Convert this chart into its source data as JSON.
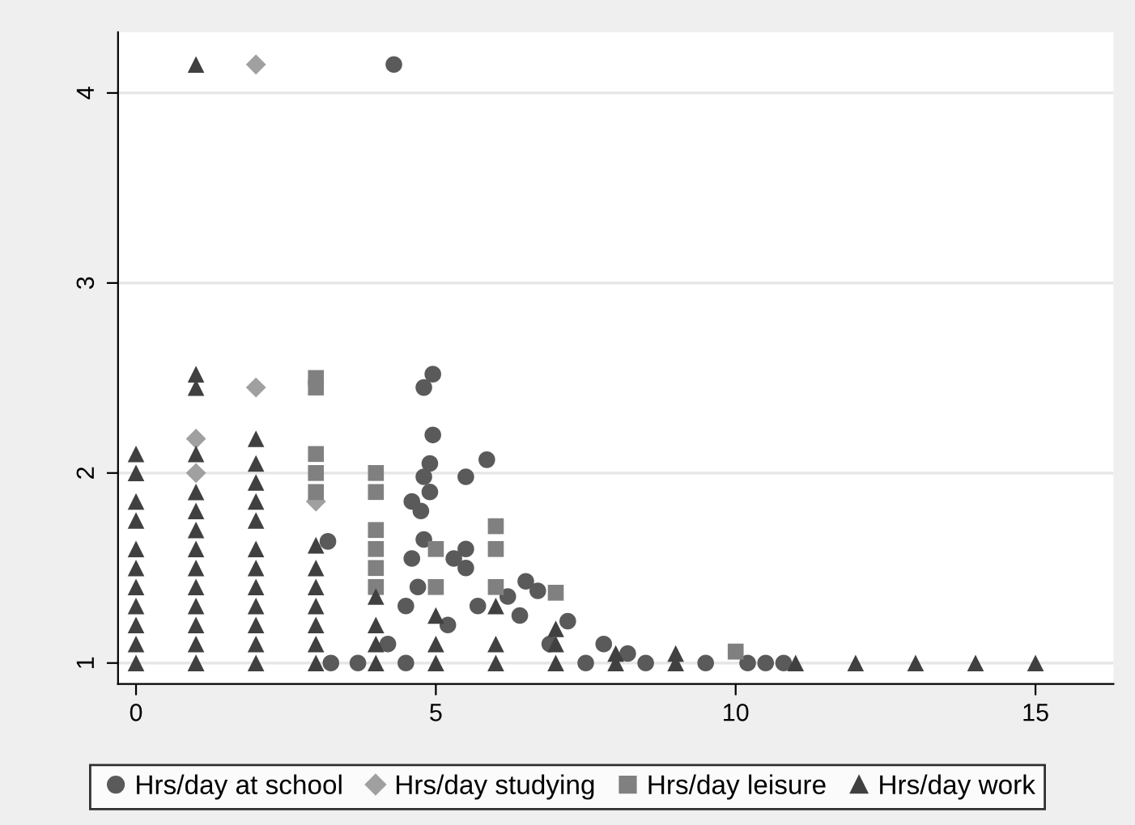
{
  "chart_data": {
    "type": "scatter",
    "xlim": [
      -0.3,
      16.3
    ],
    "ylim": [
      0.89,
      4.32
    ],
    "xticks": [
      0,
      5,
      10,
      15
    ],
    "yticks": [
      1,
      2,
      3,
      4
    ],
    "grid": "y",
    "legend": "bottom",
    "series": [
      {
        "name": "Hrs/day at school",
        "color": "#5a5a5a",
        "marker": "circle",
        "x": [
          4.3,
          4.8,
          4.95,
          4.95,
          4.9,
          4.8,
          4.9,
          4.6,
          4.75,
          4.8,
          4.6,
          4.5,
          4.7,
          5.5,
          5.85,
          5.5,
          5.5,
          5.3,
          6.5,
          6.7,
          6.2,
          6.4,
          7.2,
          7.8,
          8.2,
          3.2,
          3.25,
          3.7,
          4.2,
          4.5,
          5.2,
          5.7,
          6.9,
          7.5,
          8.5,
          9.5,
          10.2,
          10.5,
          10.8
        ],
        "values": [
          4.15,
          2.45,
          2.52,
          2.2,
          2.05,
          1.98,
          1.9,
          1.85,
          1.8,
          1.65,
          1.55,
          1.3,
          1.4,
          1.98,
          2.07,
          1.6,
          1.5,
          1.55,
          1.43,
          1.38,
          1.35,
          1.25,
          1.22,
          1.1,
          1.05,
          1.64,
          1.0,
          1.0,
          1.1,
          1.0,
          1.2,
          1.3,
          1.1,
          1.0,
          1.0,
          1.0,
          1.0,
          1.0,
          1.0
        ]
      },
      {
        "name": "Hrs/day studying",
        "color": "#a0a0a0",
        "marker": "diamond",
        "x": [
          1,
          1,
          2,
          2,
          3
        ],
        "values": [
          2.18,
          2.0,
          2.45,
          4.15,
          1.85
        ]
      },
      {
        "name": "Hrs/day leisure",
        "color": "#808080",
        "marker": "square",
        "x": [
          3,
          3,
          3,
          3,
          3,
          4,
          4,
          4,
          4,
          4,
          4,
          5,
          5,
          6,
          6,
          6,
          7,
          10
        ],
        "values": [
          2.5,
          2.45,
          2.1,
          2.0,
          1.9,
          2.0,
          1.9,
          1.7,
          1.6,
          1.5,
          1.4,
          1.6,
          1.4,
          1.72,
          1.6,
          1.4,
          1.37,
          1.06
        ]
      },
      {
        "name": "Hrs/day work",
        "color": "#404040",
        "marker": "triangle",
        "x": [
          0,
          0,
          0,
          0,
          0,
          0,
          0,
          0,
          0,
          0,
          0,
          1,
          1,
          1,
          1,
          1,
          1,
          1,
          1,
          1,
          1,
          1,
          1,
          1,
          1,
          1,
          2,
          2,
          2,
          2,
          2,
          2,
          2,
          2,
          2,
          2,
          2,
          2,
          3,
          3,
          3,
          3,
          3,
          3,
          3,
          4,
          4,
          4,
          4,
          5,
          5,
          5,
          6,
          6,
          6,
          7,
          7,
          7,
          8,
          8,
          9,
          9,
          11,
          12,
          13,
          14,
          15
        ],
        "values": [
          1.0,
          1.1,
          1.2,
          1.3,
          1.4,
          1.5,
          1.6,
          1.75,
          1.85,
          2.0,
          2.1,
          1.0,
          1.1,
          1.2,
          1.3,
          1.4,
          1.5,
          1.6,
          1.7,
          1.8,
          1.9,
          2.1,
          2.45,
          2.52,
          4.15,
          1.0,
          1.0,
          1.1,
          1.2,
          1.3,
          1.4,
          1.5,
          1.6,
          1.75,
          1.85,
          1.95,
          2.05,
          2.18,
          1.0,
          1.1,
          1.2,
          1.3,
          1.4,
          1.5,
          1.62,
          1.0,
          1.1,
          1.2,
          1.35,
          1.0,
          1.1,
          1.25,
          1.0,
          1.1,
          1.3,
          1.0,
          1.1,
          1.18,
          1.0,
          1.05,
          1.0,
          1.05,
          1.0,
          1.0,
          1.0,
          1.0,
          1.0
        ]
      }
    ]
  }
}
